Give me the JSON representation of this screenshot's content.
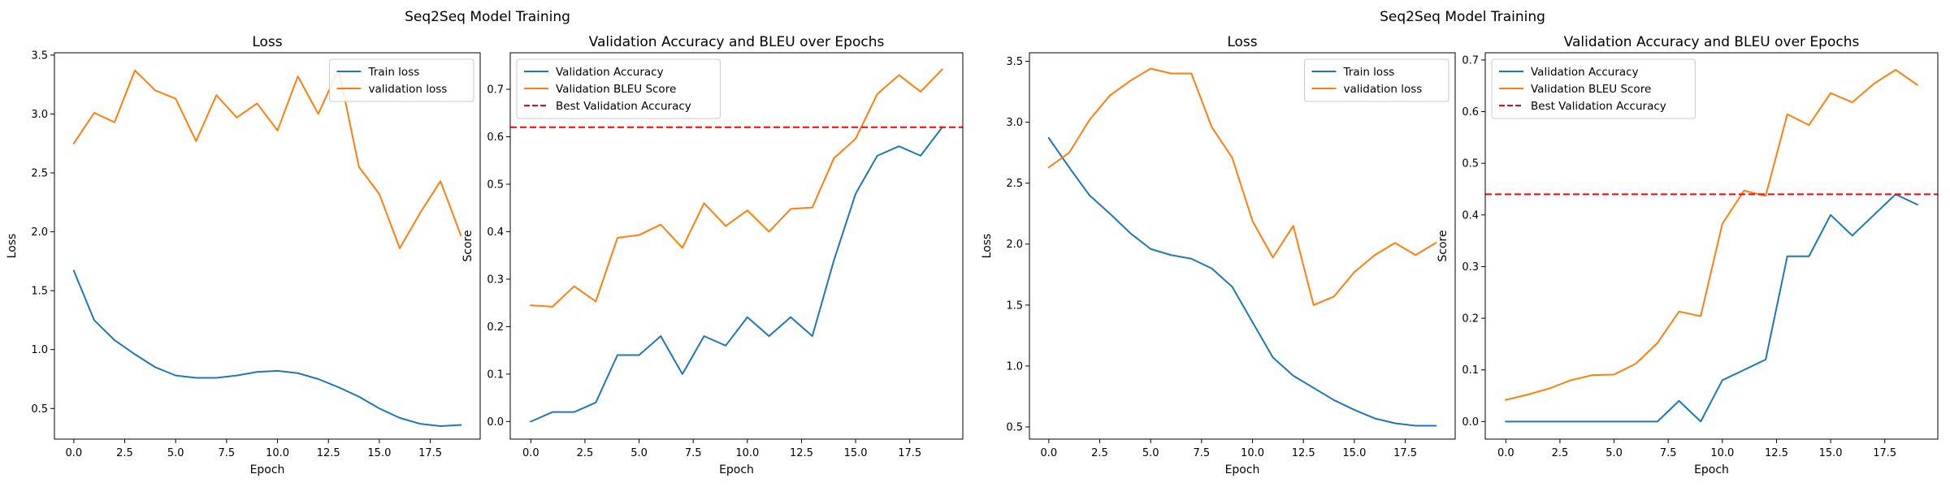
{
  "figures": [
    {
      "suptitle": "Seq2Seq Model Training"
    },
    {
      "suptitle": "Seq2Seq Model Training"
    }
  ],
  "colors": {
    "blue": "#1f77b4",
    "orange": "#ff7f0e",
    "red": "#ff0000"
  },
  "chart_data": [
    {
      "type": "line",
      "title": "Loss",
      "xlabel": "Epoch",
      "ylabel": "Loss",
      "xlim": [
        -0.95,
        19.95
      ],
      "ylim": [
        0.24,
        3.52
      ],
      "xticks": [
        0.0,
        2.5,
        5.0,
        7.5,
        10.0,
        12.5,
        15.0,
        17.5
      ],
      "xtick_labels": [
        "0.0",
        "2.5",
        "5.0",
        "7.5",
        "10.0",
        "12.5",
        "15.0",
        "17.5"
      ],
      "yticks": [
        0.5,
        1.0,
        1.5,
        2.0,
        2.5,
        3.0,
        3.5
      ],
      "ytick_labels": [
        "0.5",
        "1.0",
        "1.5",
        "2.0",
        "2.5",
        "3.0",
        "3.5"
      ],
      "legend_position": "upper right",
      "x": [
        0,
        1,
        2,
        3,
        4,
        5,
        6,
        7,
        8,
        9,
        10,
        11,
        12,
        13,
        14,
        15,
        16,
        17,
        18,
        19
      ],
      "series": [
        {
          "name": "Train loss",
          "color": "#1f77b4",
          "values": [
            1.67,
            1.25,
            1.08,
            0.96,
            0.85,
            0.78,
            0.76,
            0.76,
            0.78,
            0.81,
            0.82,
            0.8,
            0.75,
            0.68,
            0.6,
            0.5,
            0.42,
            0.37,
            0.35,
            0.36
          ]
        },
        {
          "name": "validation loss",
          "color": "#ff7f0e",
          "values": [
            2.75,
            3.01,
            2.93,
            3.37,
            3.2,
            3.13,
            2.77,
            3.16,
            2.97,
            3.09,
            2.86,
            3.32,
            3.0,
            3.38,
            2.55,
            2.32,
            1.86,
            2.16,
            2.43,
            1.97
          ]
        }
      ]
    },
    {
      "type": "line",
      "title": "Validation Accuracy and BLEU over Epochs",
      "xlabel": "Epoch",
      "ylabel": "Score",
      "xlim": [
        -0.95,
        19.95
      ],
      "ylim": [
        -0.037,
        0.777
      ],
      "xticks": [
        0.0,
        2.5,
        5.0,
        7.5,
        10.0,
        12.5,
        15.0,
        17.5
      ],
      "xtick_labels": [
        "0.0",
        "2.5",
        "5.0",
        "7.5",
        "10.0",
        "12.5",
        "15.0",
        "17.5"
      ],
      "yticks": [
        0.0,
        0.1,
        0.2,
        0.3,
        0.4,
        0.5,
        0.6,
        0.7
      ],
      "ytick_labels": [
        "0.0",
        "0.1",
        "0.2",
        "0.3",
        "0.4",
        "0.5",
        "0.6",
        "0.7"
      ],
      "legend_position": "upper left",
      "x": [
        0,
        1,
        2,
        3,
        4,
        5,
        6,
        7,
        8,
        9,
        10,
        11,
        12,
        13,
        14,
        15,
        16,
        17,
        18,
        19
      ],
      "series": [
        {
          "name": "Validation Accuracy",
          "color": "#1f77b4",
          "values": [
            0.0,
            0.02,
            0.02,
            0.04,
            0.14,
            0.14,
            0.18,
            0.1,
            0.18,
            0.16,
            0.22,
            0.18,
            0.22,
            0.18,
            0.34,
            0.48,
            0.56,
            0.58,
            0.56,
            0.62
          ]
        },
        {
          "name": "Validation BLEU Score",
          "color": "#ff7f0e",
          "values": [
            0.245,
            0.242,
            0.285,
            0.253,
            0.387,
            0.393,
            0.415,
            0.366,
            0.46,
            0.412,
            0.445,
            0.4,
            0.448,
            0.451,
            0.555,
            0.596,
            0.69,
            0.73,
            0.695,
            0.742
          ]
        }
      ],
      "hlines": [
        {
          "name": "Best Validation Accuracy",
          "y": 0.62,
          "color": "#ff0000",
          "style": "dashed"
        }
      ]
    },
    {
      "type": "line",
      "title": "Loss",
      "xlabel": "Epoch",
      "ylabel": "Loss",
      "xlim": [
        -0.95,
        19.95
      ],
      "ylim": [
        0.4,
        3.57
      ],
      "xticks": [
        0.0,
        2.5,
        5.0,
        7.5,
        10.0,
        12.5,
        15.0,
        17.5
      ],
      "xtick_labels": [
        "0.0",
        "2.5",
        "5.0",
        "7.5",
        "10.0",
        "12.5",
        "15.0",
        "17.5"
      ],
      "yticks": [
        0.5,
        1.0,
        1.5,
        2.0,
        2.5,
        3.0,
        3.5
      ],
      "ytick_labels": [
        "0.5",
        "1.0",
        "1.5",
        "2.0",
        "2.5",
        "3.0",
        "3.5"
      ],
      "legend_position": "upper right",
      "x": [
        0,
        1,
        2,
        3,
        4,
        5,
        6,
        7,
        8,
        9,
        10,
        11,
        12,
        13,
        14,
        15,
        16,
        17,
        18,
        19
      ],
      "series": [
        {
          "name": "Train loss",
          "color": "#1f77b4",
          "values": [
            2.87,
            2.63,
            2.4,
            2.25,
            2.09,
            1.96,
            1.91,
            1.88,
            1.8,
            1.65,
            1.36,
            1.07,
            0.92,
            0.82,
            0.72,
            0.64,
            0.57,
            0.53,
            0.51,
            0.51
          ]
        },
        {
          "name": "validation loss",
          "color": "#ff7f0e",
          "values": [
            2.63,
            2.75,
            3.02,
            3.22,
            3.34,
            3.44,
            3.4,
            3.4,
            2.96,
            2.71,
            2.19,
            1.89,
            2.15,
            1.5,
            1.57,
            1.77,
            1.91,
            2.01,
            1.91,
            2.01
          ]
        }
      ]
    },
    {
      "type": "line",
      "title": "Validation Accuracy and BLEU over Epochs",
      "xlabel": "Epoch",
      "ylabel": "Score",
      "xlim": [
        -0.95,
        19.95
      ],
      "ylim": [
        -0.034,
        0.714
      ],
      "xticks": [
        0.0,
        2.5,
        5.0,
        7.5,
        10.0,
        12.5,
        15.0,
        17.5
      ],
      "xtick_labels": [
        "0.0",
        "2.5",
        "5.0",
        "7.5",
        "10.0",
        "12.5",
        "15.0",
        "17.5"
      ],
      "yticks": [
        0.0,
        0.1,
        0.2,
        0.3,
        0.4,
        0.5,
        0.6,
        0.7
      ],
      "ytick_labels": [
        "0.0",
        "0.1",
        "0.2",
        "0.3",
        "0.4",
        "0.5",
        "0.6",
        "0.7"
      ],
      "legend_position": "upper left",
      "x": [
        0,
        1,
        2,
        3,
        4,
        5,
        6,
        7,
        8,
        9,
        10,
        11,
        12,
        13,
        14,
        15,
        16,
        17,
        18,
        19
      ],
      "series": [
        {
          "name": "Validation Accuracy",
          "color": "#1f77b4",
          "values": [
            0.0,
            0.0,
            0.0,
            0.0,
            0.0,
            0.0,
            0.0,
            0.0,
            0.04,
            0.0,
            0.08,
            0.1,
            0.12,
            0.32,
            0.32,
            0.4,
            0.36,
            0.4,
            0.44,
            0.42
          ]
        },
        {
          "name": "Validation BLEU Score",
          "color": "#ff7f0e",
          "values": [
            0.042,
            0.052,
            0.064,
            0.08,
            0.09,
            0.091,
            0.112,
            0.152,
            0.213,
            0.204,
            0.383,
            0.447,
            0.437,
            0.595,
            0.574,
            0.636,
            0.618,
            0.654,
            0.681,
            0.652
          ]
        }
      ],
      "hlines": [
        {
          "name": "Best Validation Accuracy",
          "y": 0.44,
          "color": "#ff0000",
          "style": "dashed"
        }
      ]
    }
  ]
}
